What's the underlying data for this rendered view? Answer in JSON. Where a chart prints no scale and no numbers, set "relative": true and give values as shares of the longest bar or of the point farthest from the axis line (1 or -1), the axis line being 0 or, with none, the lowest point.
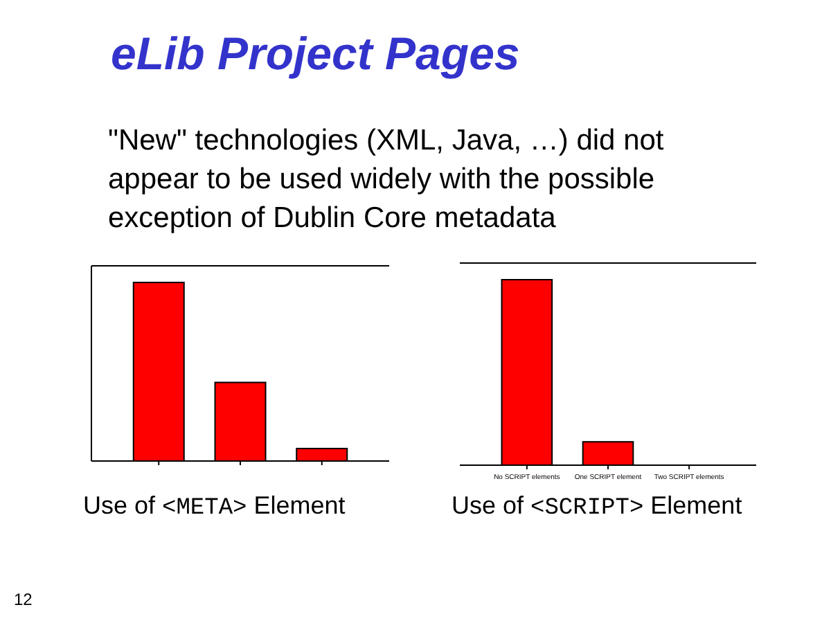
{
  "chart_data": [
    {
      "type": "bar",
      "title": "eLib Project Pages",
      "subtitle": "\"New\" technologies (XML, Java, …) did not appear to be used widely with the possible exception of Dublin Core metadata",
      "categories": [
        null,
        null,
        null
      ],
      "values": [
        1,
        0.44,
        0.07
      ],
      "color": "#ff0000",
      "relative": true,
      "annotations": [
        "Use of <META> Element",
        "12"
      ]
    },
    {
      "type": "bar",
      "categories": [
        "No SCRIPT elements",
        "One SCRIPT element",
        "Two SCRIPT elements"
      ],
      "values": [
        1,
        0.126,
        0
      ],
      "color": "#ff0000",
      "relative": true,
      "annotations": [
        "Use of <SCRIPT> Element"
      ]
    }
  ]
}
